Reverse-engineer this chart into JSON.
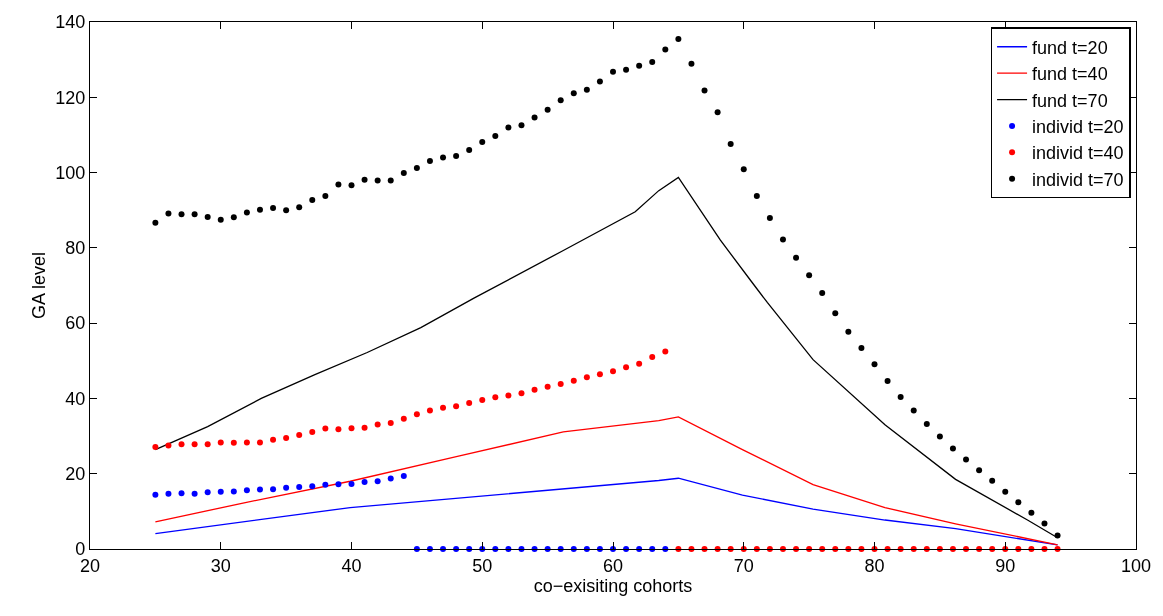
{
  "chart_data": {
    "type": "line",
    "xlabel": "co−exisiting cohorts",
    "ylabel": "GA level",
    "xlim": [
      20,
      100
    ],
    "xticks": [
      20,
      30,
      40,
      50,
      60,
      70,
      80,
      90,
      100
    ],
    "ylim": [
      0,
      140
    ],
    "yticks": [
      0,
      20,
      40,
      60,
      80,
      100,
      120,
      140
    ],
    "legend": "top right",
    "series": [
      {
        "name": "fund t=20",
        "color": "#0000ff",
        "marker": "none",
        "x": [
          25,
          39.9,
          63.5,
          65,
          69.9,
          75.3,
          80.8,
          86.2,
          94
        ],
        "values": [
          4.1,
          11.0,
          18.2,
          18.8,
          14.3,
          10.6,
          7.7,
          5.4,
          1.1
        ]
      },
      {
        "name": "fund t=40",
        "color": "#ff0000",
        "marker": "none",
        "x": [
          25,
          31.7,
          39.9,
          48.1,
          56.2,
          63.5,
          65,
          69.9,
          75.3,
          80.8,
          86.2,
          94
        ],
        "values": [
          7.2,
          12.2,
          18.0,
          24.6,
          31.1,
          34.1,
          35.1,
          26.4,
          17.1,
          11.0,
          6.7,
          1.1
        ]
      },
      {
        "name": "fund t=70",
        "color": "#000000",
        "marker": "none",
        "x": [
          25,
          29,
          33.1,
          37.2,
          41.2,
          45.3,
          49.4,
          56.2,
          61.7,
          63.5,
          65,
          68.2,
          70.6,
          71.8,
          75.3,
          80.8,
          86.2,
          91.7,
          94
        ],
        "values": [
          26.4,
          32.5,
          40.0,
          46.3,
          52.2,
          58.8,
          66.7,
          79.3,
          89.6,
          95.2,
          98.7,
          82.1,
          71.0,
          65.5,
          50.3,
          33.0,
          18.5,
          7.7,
          3.0
        ]
      },
      {
        "name": "individ t=20",
        "color": "#0000ff",
        "type": "scatter",
        "marker": "circle",
        "x": [
          25,
          26,
          27,
          28,
          29,
          30,
          31,
          32,
          33,
          34,
          35,
          36,
          37,
          38,
          39,
          40,
          41,
          42,
          43,
          44,
          45,
          46,
          47,
          48,
          49,
          50,
          51,
          52,
          53,
          54,
          55,
          56,
          57,
          58,
          59,
          60,
          61,
          62,
          63,
          64
        ],
        "values": [
          14.4,
          14.7,
          14.8,
          14.7,
          15.1,
          15.2,
          15.3,
          15.6,
          15.8,
          15.9,
          16.3,
          16.5,
          16.7,
          17.1,
          17.2,
          17.3,
          17.8,
          18.0,
          18.7,
          19.4,
          0,
          0,
          0,
          0,
          0,
          0,
          0,
          0,
          0,
          0,
          0,
          0,
          0,
          0,
          0,
          0,
          0,
          0,
          0,
          0
        ]
      },
      {
        "name": "individ t=40",
        "color": "#ff0000",
        "type": "scatter",
        "marker": "circle",
        "x": [
          25,
          26,
          27,
          28,
          29,
          30,
          31,
          32,
          33,
          34,
          35,
          36,
          37,
          38,
          39,
          40,
          41,
          42,
          43,
          44,
          45,
          46,
          47,
          48,
          49,
          50,
          51,
          52,
          53,
          54,
          55,
          56,
          57,
          58,
          59,
          60,
          61,
          62,
          63,
          64,
          65,
          66,
          67,
          68,
          69,
          70,
          71,
          72,
          73,
          74,
          75,
          76,
          77,
          78,
          79,
          80,
          81,
          82,
          83,
          84,
          85,
          86,
          87,
          88,
          89,
          90,
          91,
          92,
          93,
          94
        ],
        "values": [
          27.1,
          27.5,
          27.8,
          27.8,
          27.8,
          28.3,
          28.2,
          28.3,
          28.3,
          29.0,
          29.5,
          30.3,
          31.1,
          32.0,
          31.8,
          32.1,
          32.2,
          33.1,
          33.5,
          34.6,
          35.8,
          36.8,
          37.5,
          37.9,
          38.8,
          39.6,
          40.3,
          40.8,
          41.4,
          42.3,
          43.1,
          43.8,
          44.7,
          45.6,
          46.4,
          47.2,
          48.3,
          49.2,
          51.0,
          52.5,
          0,
          0,
          0,
          0,
          0,
          0,
          0,
          0,
          0,
          0,
          0,
          0,
          0,
          0,
          0,
          0,
          0,
          0,
          0,
          0,
          0,
          0,
          0,
          0,
          0,
          0,
          0,
          0,
          0,
          0
        ]
      },
      {
        "name": "individ t=70",
        "color": "#000000",
        "type": "scatter",
        "marker": "circle",
        "x": [
          25,
          26,
          27,
          28,
          29,
          30,
          31,
          32,
          33,
          34,
          35,
          36,
          37,
          38,
          39,
          40,
          41,
          42,
          43,
          44,
          45,
          46,
          47,
          48,
          49,
          50,
          51,
          52,
          53,
          54,
          55,
          56,
          57,
          58,
          59,
          60,
          61,
          62,
          63,
          64,
          65,
          66,
          67,
          68,
          69,
          70,
          71,
          72,
          73,
          74,
          75,
          76,
          77,
          78,
          79,
          80,
          81,
          82,
          83,
          84,
          85,
          86,
          87,
          88,
          89,
          90,
          91,
          92,
          93,
          94
        ],
        "values": [
          86.7,
          89.1,
          88.9,
          88.9,
          88.2,
          87.5,
          88.1,
          89.4,
          90.1,
          90.6,
          90.0,
          90.8,
          92.7,
          93.8,
          96.8,
          96.6,
          98.1,
          97.9,
          97.9,
          99.9,
          101.2,
          103.1,
          104.0,
          104.4,
          106.0,
          108.1,
          109.7,
          112.0,
          112.6,
          114.6,
          116.7,
          119.2,
          121.1,
          122.0,
          124.2,
          126.8,
          127.3,
          128.4,
          129.4,
          132.7,
          135.5,
          128.9,
          121.8,
          116.0,
          107.6,
          100.9,
          93.8,
          87.9,
          82.2,
          77.4,
          72.7,
          68.0,
          62.6,
          57.7,
          53.4,
          49.1,
          44.6,
          40.4,
          36.8,
          33.2,
          29.9,
          26.7,
          23.8,
          20.9,
          18.1,
          15.2,
          12.4,
          9.6,
          6.8,
          3.6
        ]
      }
    ]
  }
}
